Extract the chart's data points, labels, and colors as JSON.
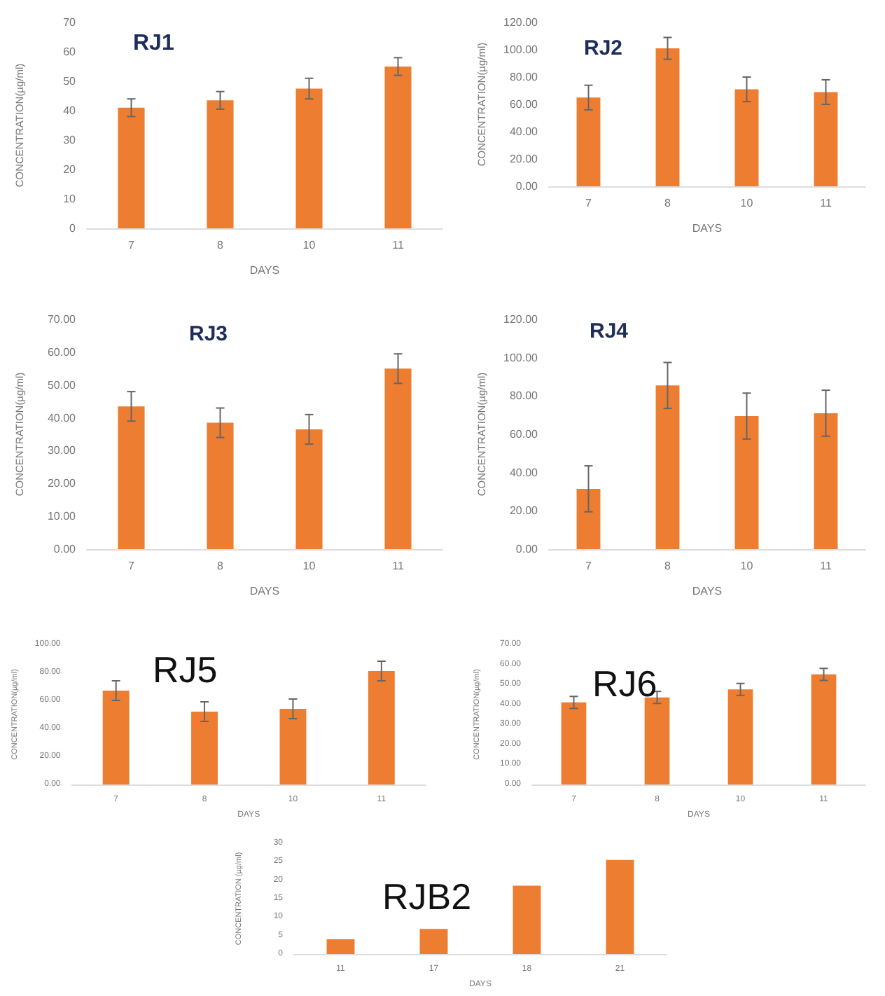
{
  "chart_data": [
    {
      "type": "bar",
      "title": "RJ1",
      "xlabel": "DAYS",
      "ylabel": "CONCENTRATION(µg/ml)",
      "categories": [
        "7",
        "8",
        "10",
        "11"
      ],
      "values": [
        41,
        43.5,
        47.5,
        55
      ],
      "errors": [
        3,
        3,
        3.5,
        3
      ],
      "color": "#ed7d31",
      "ylim": [
        0,
        70
      ],
      "yticks": [
        0,
        10,
        20,
        30,
        40,
        50,
        60,
        70
      ]
    },
    {
      "type": "bar",
      "title": "RJ2",
      "xlabel": "DAYS",
      "ylabel": "CONCENTRATION(µg/ml)",
      "categories": [
        "7",
        "8",
        "10",
        "11"
      ],
      "values": [
        65,
        101,
        71,
        69
      ],
      "errors": [
        9,
        8,
        9,
        9
      ],
      "color": "#ed7d31",
      "ylim": [
        0,
        120
      ],
      "yticks": [
        {
          "value": 0,
          "label": "0.00"
        },
        {
          "value": 20,
          "label": "20.00"
        },
        {
          "value": 40,
          "label": "40.00"
        },
        {
          "value": 60,
          "label": "60.00"
        },
        {
          "value": 80,
          "label": "80.00"
        },
        {
          "value": 100,
          "label": "100.00"
        },
        {
          "value": 120,
          "label": "120.00"
        }
      ]
    },
    {
      "type": "bar",
      "title": "RJ3",
      "xlabel": "DAYS",
      "ylabel": "CONCENTRATION(µg/ml)",
      "categories": [
        "7",
        "8",
        "10",
        "11"
      ],
      "values": [
        43.5,
        38.5,
        36.5,
        55
      ],
      "errors": [
        4.5,
        4.5,
        4.5,
        4.5
      ],
      "color": "#ed7d31",
      "ylim": [
        0,
        70
      ],
      "yticks": [
        {
          "value": 0,
          "label": "0.00"
        },
        {
          "value": 10,
          "label": "10.00"
        },
        {
          "value": 20,
          "label": "20.00"
        },
        {
          "value": 30,
          "label": "30.00"
        },
        {
          "value": 40,
          "label": "40.00"
        },
        {
          "value": 50,
          "label": "50.00"
        },
        {
          "value": 60,
          "label": "60.00"
        },
        {
          "value": 70,
          "label": "70.00"
        }
      ]
    },
    {
      "type": "bar",
      "title": "RJ4",
      "xlabel": "DAYS",
      "ylabel": "CONCENTRATION(µg/ml)",
      "categories": [
        "7",
        "8",
        "10",
        "11"
      ],
      "values": [
        31.5,
        85.5,
        69.5,
        71
      ],
      "errors": [
        12,
        12,
        12,
        12
      ],
      "color": "#ed7d31",
      "ylim": [
        0,
        120
      ],
      "yticks": [
        {
          "value": 0,
          "label": "0.00"
        },
        {
          "value": 20,
          "label": "20.00"
        },
        {
          "value": 40,
          "label": "40.00"
        },
        {
          "value": 60,
          "label": "60.00"
        },
        {
          "value": 80,
          "label": "80.00"
        },
        {
          "value": 100,
          "label": "100.00"
        },
        {
          "value": 120,
          "label": "120.00"
        }
      ]
    },
    {
      "type": "bar",
      "title": "RJ5",
      "xlabel": "DAYS",
      "ylabel": "CONCENTRATION(µg/ml)",
      "categories": [
        "7",
        "8",
        "10",
        "11"
      ],
      "values": [
        67,
        52,
        54,
        81
      ],
      "errors": [
        7,
        7,
        7,
        7
      ],
      "color": "#ed7d31",
      "ylim": [
        0,
        100
      ],
      "yticks": [
        {
          "value": 0,
          "label": "0.00"
        },
        {
          "value": 20,
          "label": "20.00"
        },
        {
          "value": 40,
          "label": "40.00"
        },
        {
          "value": 60,
          "label": "60.00"
        },
        {
          "value": 80,
          "label": "80.00"
        },
        {
          "value": 100,
          "label": "100.00"
        }
      ]
    },
    {
      "type": "bar",
      "title": "RJ6",
      "xlabel": "DAYS",
      "ylabel": "CONCENTRATION(µg/ml)",
      "categories": [
        "7",
        "8",
        "10",
        "11"
      ],
      "values": [
        41,
        43.5,
        47.5,
        55
      ],
      "errors": [
        3,
        3,
        3,
        3
      ],
      "color": "#ed7d31",
      "ylim": [
        0,
        70
      ],
      "yticks": [
        {
          "value": 0,
          "label": "0.00"
        },
        {
          "value": 10,
          "label": "10.00"
        },
        {
          "value": 20,
          "label": "20.00"
        },
        {
          "value": 30,
          "label": "30.00"
        },
        {
          "value": 40,
          "label": "40.00"
        },
        {
          "value": 50,
          "label": "50.00"
        },
        {
          "value": 60,
          "label": "60.00"
        },
        {
          "value": 70,
          "label": "70.00"
        }
      ]
    },
    {
      "type": "bar",
      "title": "RJB2",
      "xlabel": "DAYS",
      "ylabel": "CONCENTRATION (µg/ml)",
      "categories": [
        "11",
        "17",
        "18",
        "21"
      ],
      "values": [
        4,
        6.8,
        18.5,
        25.5
      ],
      "color": "#ed7d31",
      "ylim": [
        0,
        30
      ],
      "yticks": [
        0,
        5,
        10,
        15,
        20,
        25,
        30
      ]
    }
  ]
}
